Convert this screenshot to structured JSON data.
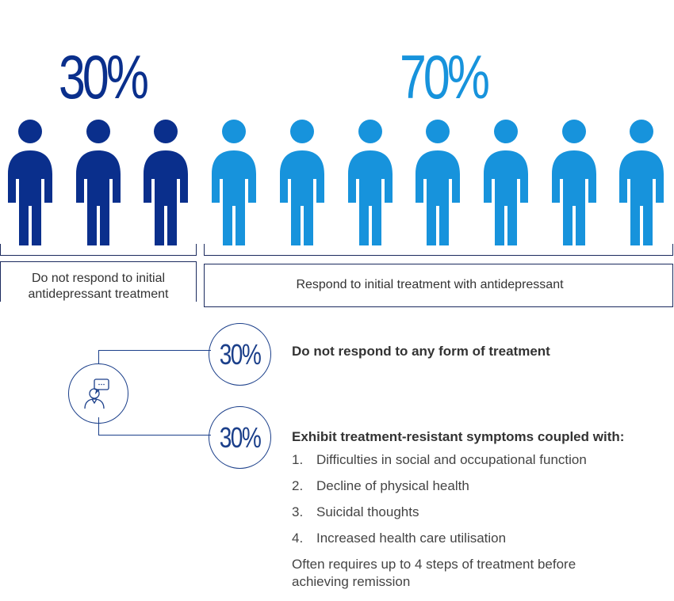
{
  "top_stats": {
    "non_responders_pct": "30%",
    "responders_pct": "70%"
  },
  "colors": {
    "dark_blue": "#0a2f8c",
    "light_blue": "#1793dc",
    "line": "#1b3f8a"
  },
  "people": {
    "dark_count": 3,
    "light_count": 7
  },
  "brackets": {
    "left_label": "Do not respond to initial antidepressant treatment",
    "right_label": "Respond to initial treatment with antidepressant"
  },
  "breakdown": {
    "icon": "person-speech-bubble-icon",
    "top_pct": "30%",
    "top_text": "Do not respond to any form of treatment",
    "bottom_pct": "30%",
    "bottom_heading": "Exhibit treatment-resistant symptoms coupled with:",
    "items": [
      {
        "num": "1.",
        "text": "Difficulties in social and occupational function"
      },
      {
        "num": "2.",
        "text": "Decline of physical health"
      },
      {
        "num": "3.",
        "text": "Suicidal thoughts"
      },
      {
        "num": "4.",
        "text": "Increased health care utilisation"
      }
    ],
    "note": "Often requires up to 4 steps of treatment before achieving remission"
  }
}
